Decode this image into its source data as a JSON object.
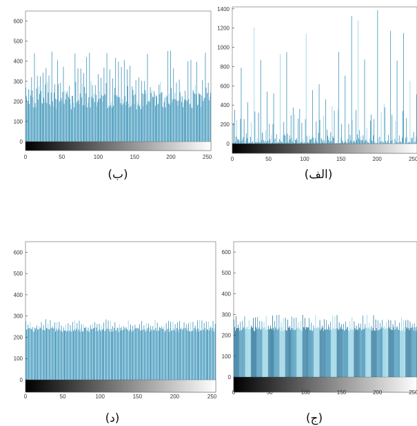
{
  "colors": {
    "bar": "#3a8fb5",
    "bar_light": "#8fd0e3",
    "bar_dark": "#1f6f96",
    "axis": "#222222"
  },
  "chart_data": [
    {
      "id": "b",
      "type": "bar",
      "caption": "(ب)",
      "xlim": [
        0,
        255
      ],
      "ylim": [
        -40,
        650
      ],
      "yticks": [
        "0",
        "100",
        "200",
        "300",
        "400",
        "500",
        "600"
      ],
      "xticks": [
        "0",
        "50",
        "100",
        "150",
        "200",
        "250"
      ],
      "gray_ramp": true,
      "distribution": {
        "base": 185,
        "spread": 240,
        "peak_max": 455
      }
    },
    {
      "id": "alef",
      "type": "bar",
      "caption": "(الف)",
      "xlim": [
        0,
        255
      ],
      "ylim": [
        -100,
        1420
      ],
      "yticks": [
        "0",
        "200",
        "400",
        "600",
        "800",
        "1000",
        "1200",
        "1400"
      ],
      "xticks": [
        "0",
        "50",
        "100",
        "150",
        "200",
        "250"
      ],
      "gray_ramp": true,
      "distribution": {
        "base": 40,
        "spread": 120,
        "peak_max": 1400
      }
    },
    {
      "id": "dal",
      "type": "bar",
      "caption": "(د)",
      "xlim": [
        0,
        255
      ],
      "ylim": [
        -40,
        650
      ],
      "yticks": [
        "0",
        "100",
        "200",
        "300",
        "400",
        "500",
        "600"
      ],
      "xticks": [
        "0",
        "50",
        "100",
        "150",
        "200",
        "250"
      ],
      "gray_ramp": true,
      "distribution": {
        "base": 235,
        "spread": 45,
        "peak_max": 285
      }
    },
    {
      "id": "jim",
      "type": "bar",
      "caption": "(ج)",
      "xlim": [
        0,
        255
      ],
      "ylim": [
        -40,
        650
      ],
      "yticks": [
        "0",
        "100",
        "200",
        "300",
        "400",
        "500",
        "600"
      ],
      "xticks": [
        "0",
        "50",
        "100",
        "150",
        "200",
        "250"
      ],
      "gray_ramp": true,
      "distribution": {
        "base": 230,
        "spread": 60,
        "peak_max": 300
      }
    }
  ]
}
